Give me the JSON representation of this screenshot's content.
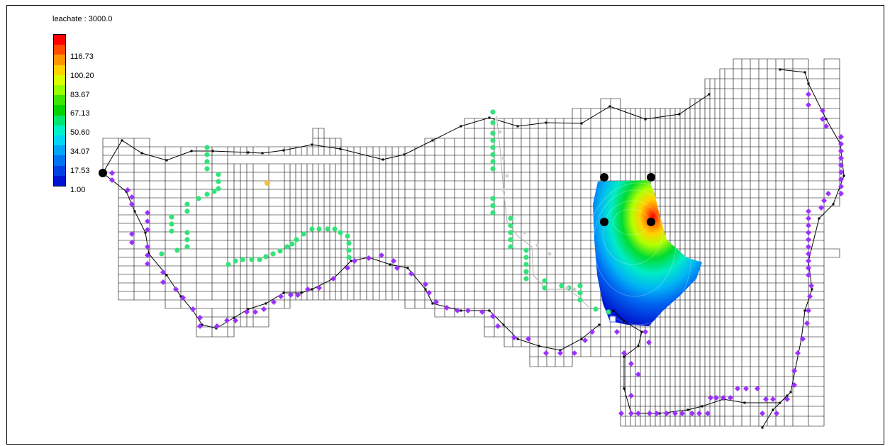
{
  "legend": {
    "title": "leachate : 3000.0",
    "ticks": [
      "116.73",
      "100.20",
      "83.67",
      "67.13",
      "50.60",
      "34.07",
      "17.53",
      "1.00"
    ],
    "band_colors": [
      "#ff0000",
      "#ff4a00",
      "#ff9600",
      "#ffd200",
      "#dcff00",
      "#96ff00",
      "#3ce600",
      "#00d200",
      "#00e66e",
      "#00f0c8",
      "#00d7f5",
      "#00a5f5",
      "#0073f0",
      "#0041e6",
      "#0014d2"
    ]
  },
  "colors": {
    "grid_line": "#000000",
    "boundary_marker": "#9b30ff",
    "stream_marker": "#33e37a",
    "well_marker": "#000000",
    "plume_low": "#0018d0",
    "plume_high": "#ff0000",
    "source_marker": "#f0c040"
  }
}
